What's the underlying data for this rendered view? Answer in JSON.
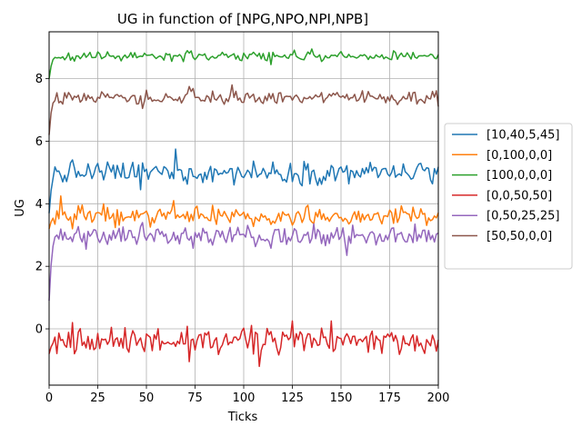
{
  "chart_data": {
    "type": "line",
    "title": "UG in function of [NPG,NPO,NPI,NPB]",
    "xlabel": "Ticks",
    "ylabel": "UG",
    "xlim": [
      0,
      200
    ],
    "ylim": [
      -1.8,
      9.5
    ],
    "xticks": [
      0,
      25,
      50,
      75,
      100,
      125,
      150,
      175,
      200
    ],
    "yticks": [
      0,
      2,
      4,
      6,
      8
    ],
    "grid": true,
    "legend_position": "right, outside plot",
    "series": [
      {
        "name": "[10,40,5,45]",
        "color": "#1f77b4",
        "start": 3.7,
        "level": 5.0,
        "noise": 0.22,
        "points": [
          [
            65,
            5.75
          ],
          [
            47,
            4.45
          ],
          [
            7,
            4.7
          ]
        ]
      },
      {
        "name": "[0,100,0,0]",
        "color": "#ff7f0e",
        "start": 3.2,
        "level": 3.6,
        "noise": 0.18,
        "points": [
          [
            6,
            4.25
          ],
          [
            64,
            4.1
          ],
          [
            12,
            3.2
          ]
        ]
      },
      {
        "name": "[100,0,0,0]",
        "color": "#2ca02c",
        "start": 8.0,
        "level": 8.72,
        "noise": 0.09,
        "points": [
          [
            135,
            8.95
          ],
          [
            114,
            8.45
          ]
        ]
      },
      {
        "name": "[0,0,50,50]",
        "color": "#d62728",
        "start": -0.8,
        "level": -0.4,
        "noise": 0.25,
        "points": [
          [
            12,
            0.2
          ],
          [
            125,
            0.25
          ],
          [
            108,
            -1.2
          ],
          [
            72,
            -1.05
          ],
          [
            145,
            0.25
          ]
        ]
      },
      {
        "name": "[0,50,25,25]",
        "color": "#9467bd",
        "start": 0.9,
        "level": 2.95,
        "noise": 0.2,
        "points": [
          [
            153,
            2.35
          ],
          [
            48,
            3.4
          ],
          [
            188,
            3.35
          ]
        ]
      },
      {
        "name": "[50,50,0,0]",
        "color": "#8c564b",
        "start": 6.2,
        "level": 7.4,
        "noise": 0.14,
        "points": [
          [
            94,
            7.8
          ],
          [
            72,
            7.75
          ],
          [
            48,
            7.05
          ],
          [
            1,
            6.9
          ]
        ]
      }
    ]
  }
}
